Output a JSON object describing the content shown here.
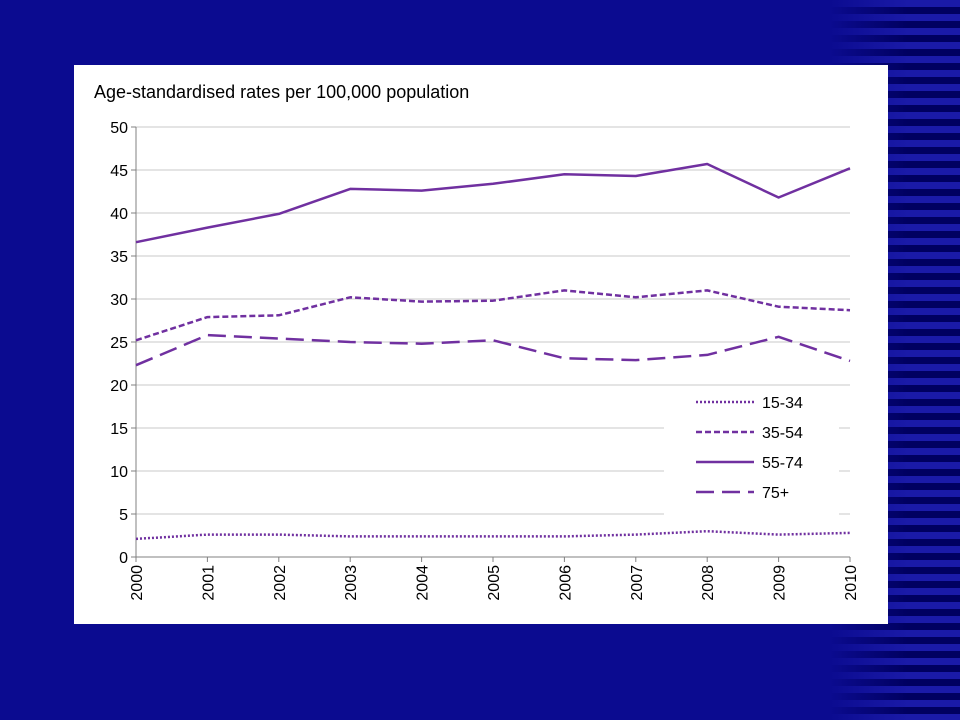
{
  "background": {
    "color": "#0b0b90"
  },
  "chart_data": {
    "type": "line",
    "title": "Age-standardised rates per 100,000 population",
    "xlabel": "",
    "ylabel": "",
    "x": [
      "2000",
      "2001",
      "2002",
      "2003",
      "2004",
      "2005",
      "2006",
      "2007",
      "2008",
      "2009",
      "2010"
    ],
    "ylim": [
      0,
      50
    ],
    "yticks": [
      "0",
      "5",
      "10",
      "15",
      "20",
      "25",
      "30",
      "35",
      "40",
      "45",
      "50"
    ],
    "grid": true,
    "legend_position": "bottom-right",
    "line_color": "#7030a0",
    "series": [
      {
        "name": "15-34",
        "style": "dotted",
        "values": [
          2.1,
          2.6,
          2.6,
          2.4,
          2.4,
          2.4,
          2.4,
          2.6,
          3.0,
          2.6,
          2.8
        ]
      },
      {
        "name": "35-54",
        "style": "dashed",
        "values": [
          25.2,
          27.9,
          28.1,
          30.2,
          29.7,
          29.8,
          31.0,
          30.2,
          31.0,
          29.1,
          28.7
        ]
      },
      {
        "name": "55-74",
        "style": "solid",
        "values": [
          36.6,
          38.3,
          39.9,
          42.8,
          42.6,
          43.4,
          44.5,
          44.3,
          45.7,
          41.8,
          45.2
        ]
      },
      {
        "name": "75+",
        "style": "long-dashed",
        "values": [
          22.3,
          25.8,
          25.4,
          25.0,
          24.8,
          25.2,
          23.1,
          22.9,
          23.5,
          25.6,
          22.8
        ]
      }
    ]
  }
}
